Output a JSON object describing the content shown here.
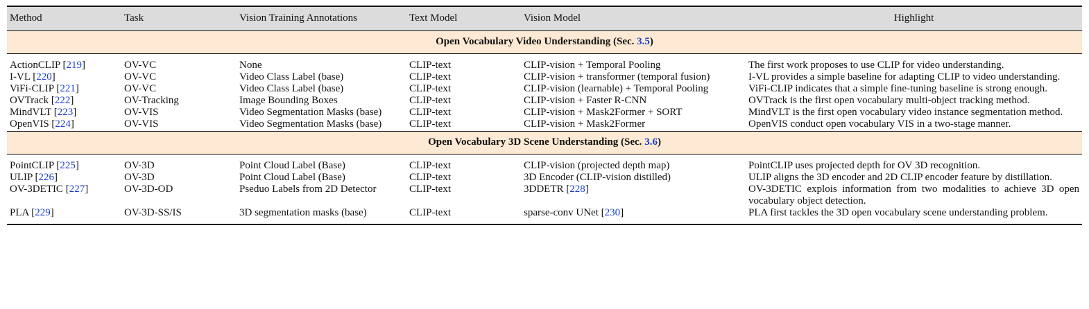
{
  "columns": [
    "Method",
    "Task",
    "Vision Training Annotations",
    "Text Model",
    "Vision Model",
    "Highlight"
  ],
  "sections": [
    {
      "title_prefix": "Open Vocabulary Video Understanding (Sec. ",
      "title_ref": "3.5",
      "title_suffix": ")",
      "rows": [
        {
          "method": "ActionCLIP",
          "ref": "219",
          "task": "OV-VC",
          "annotations": "None",
          "text_model": "CLIP-text",
          "vision_model": "CLIP-vision + Temporal Pooling",
          "vision_ref": "",
          "highlight": "The first work proposes to use CLIP for video understanding."
        },
        {
          "method": "I-VL",
          "ref": "220",
          "task": "OV-VC",
          "annotations": "Video Class Label (base)",
          "text_model": "CLIP-text",
          "vision_model": "CLIP-vision + transformer (temporal fusion)",
          "vision_ref": "",
          "highlight": "I-VL provides a simple baseline for adapting CLIP to video understanding."
        },
        {
          "method": "ViFi-CLIP",
          "ref": "221",
          "task": "OV-VC",
          "annotations": "Video Class Label (base)",
          "text_model": "CLIP-text",
          "vision_model": "CLIP-vision (learnable) + Temporal Pooling",
          "vision_ref": "",
          "highlight": "ViFi-CLIP indicates that a simple fine-tuning baseline is strong enough."
        },
        {
          "method": "OVTrack",
          "ref": "222",
          "task": "OV-Tracking",
          "annotations": "Image Bounding Boxes",
          "text_model": "CLIP-text",
          "vision_model": "CLIP-vision + Faster R-CNN",
          "vision_ref": "",
          "highlight": "OVTrack is the first open vocabulary multi-object tracking method."
        },
        {
          "method": "MindVLT",
          "ref": "223",
          "task": "OV-VIS",
          "annotations": "Video Segmentation Masks (base)",
          "text_model": "CLIP-text",
          "vision_model": "CLIP-vision + Mask2Former + SORT",
          "vision_ref": "",
          "highlight": "MindVLT is the first open vocabulary video instance segmentation method."
        },
        {
          "method": "OpenVIS",
          "ref": "224",
          "task": "OV-VIS",
          "annotations": "Video Segmentation Masks (base)",
          "text_model": "CLIP-text",
          "vision_model": "CLIP-vision + Mask2Former",
          "vision_ref": "",
          "highlight": "OpenVIS conduct open vocabulary VIS in a two-stage manner."
        }
      ]
    },
    {
      "title_prefix": "Open Vocabulary 3D Scene Understanding (Sec. ",
      "title_ref": "3.6",
      "title_suffix": ")",
      "rows": [
        {
          "method": "PointCLIP",
          "ref": "225",
          "task": "OV-3D",
          "annotations": "Point Cloud Label (Base)",
          "text_model": "CLIP-text",
          "vision_model": "CLIP-vision (projected depth map)",
          "vision_ref": "",
          "highlight": "PointCLIP uses projected depth for OV 3D recognition."
        },
        {
          "method": "ULIP",
          "ref": "226",
          "task": "OV-3D",
          "annotations": "Point Cloud Label (Base)",
          "text_model": "CLIP-text",
          "vision_model": "3D Encoder (CLIP-vision distilled)",
          "vision_ref": "",
          "highlight": "ULIP aligns the 3D encoder and 2D CLIP encoder feature by distillation."
        },
        {
          "method": "OV-3DETIC",
          "ref": "227",
          "task": "OV-3D-OD",
          "annotations": "Pseduo Labels from 2D Detector",
          "text_model": "CLIP-text",
          "vision_model": "3DDETR",
          "vision_ref": "228",
          "highlight": "OV-3DETIC explois information from two modalities to achieve 3D open vocabulary object detection."
        },
        {
          "method": "PLA",
          "ref": "229",
          "task": "OV-3D-SS/IS",
          "annotations": "3D segmentation masks (base)",
          "text_model": "CLIP-text",
          "vision_model": "sparse-conv UNet",
          "vision_ref": "230",
          "highlight": "PLA first tackles the 3D open vocabulary scene understanding problem."
        }
      ]
    }
  ]
}
